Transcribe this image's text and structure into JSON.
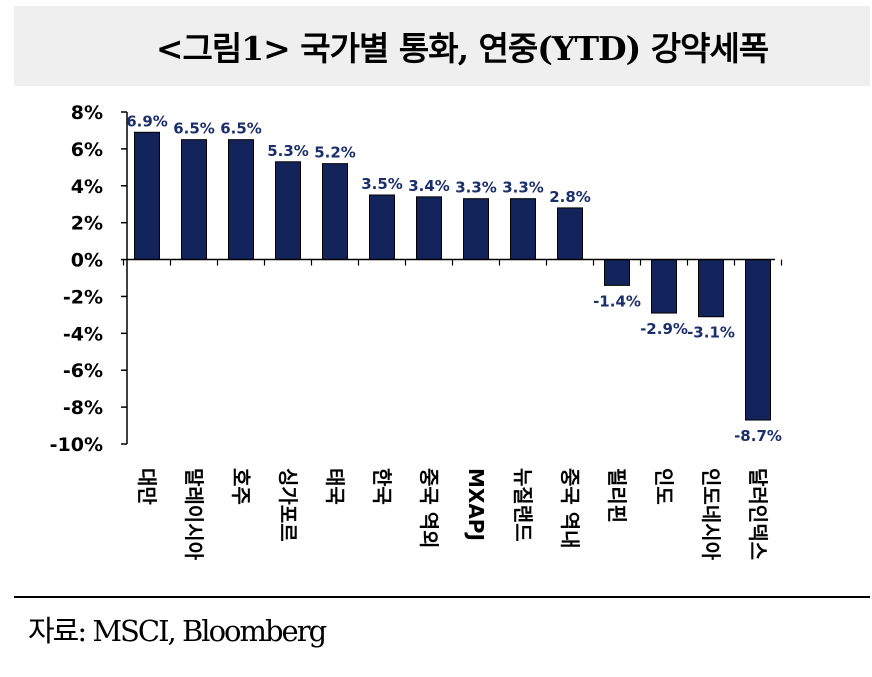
{
  "title": "<그림1>   국가별 통화, 연중(YTD) 강약세폭",
  "source": "자료: MSCI, Bloomberg",
  "colors": {
    "bar": "#13235b",
    "label": "#1b2f6b",
    "title_bg": "#efefef"
  },
  "chart_data": {
    "type": "bar",
    "title": "<그림1>   국가별 통화, 연중(YTD) 강약세폭",
    "xlabel": "",
    "ylabel": "",
    "ylim": [
      -10,
      8
    ],
    "yticks": [
      8,
      6,
      4,
      2,
      0,
      -2,
      -4,
      -6,
      -8,
      -10
    ],
    "ytick_labels": [
      "8%",
      "6%",
      "4%",
      "2%",
      "0%",
      "-2%",
      "-4%",
      "-6%",
      "-8%",
      "-10%"
    ],
    "categories": [
      "대만",
      "말레이시아",
      "호주",
      "싱가포르",
      "태국",
      "한국",
      "중국 역외",
      "MXAPJ",
      "뉴질랜드",
      "중국 역내",
      "필리핀",
      "인도",
      "인도네시아",
      "달러인덱스"
    ],
    "values": [
      6.9,
      6.5,
      6.5,
      5.3,
      5.2,
      3.5,
      3.4,
      3.3,
      3.3,
      2.8,
      -1.4,
      -2.9,
      -3.1,
      -8.7
    ],
    "data_labels": [
      "6.9%",
      "6.5%",
      "6.5%",
      "5.3%",
      "5.2%",
      "3.5%",
      "3.4%",
      "3.3%",
      "3.3%",
      "2.8%",
      "-1.4%",
      "-2.9%",
      "-3.1%",
      "-8.7%"
    ],
    "grid": false,
    "legend": "none"
  }
}
